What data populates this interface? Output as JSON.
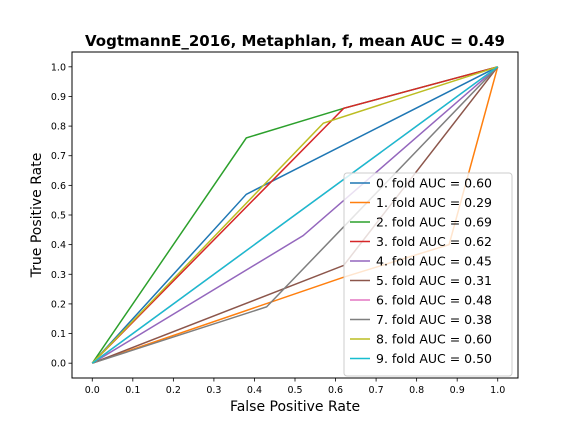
{
  "chart_data": {
    "type": "line",
    "title": "VogtmannE_2016, Metaphlan, f, mean AUC =  0.49",
    "xlabel": "False Positive Rate",
    "ylabel": "True Positive Rate",
    "xlim": [
      -0.05,
      1.05
    ],
    "ylim": [
      -0.05,
      1.05
    ],
    "xticks": [
      "0.0",
      "0.1",
      "0.2",
      "0.3",
      "0.4",
      "0.5",
      "0.6",
      "0.7",
      "0.8",
      "0.9",
      "1.0"
    ],
    "yticks": [
      "0.0",
      "0.1",
      "0.2",
      "0.3",
      "0.4",
      "0.5",
      "0.6",
      "0.7",
      "0.8",
      "0.9",
      "1.0"
    ],
    "grid": false,
    "legend_position": "lower-right",
    "series": [
      {
        "name": "0. fold AUC = 0.60",
        "color": "#1f77b4",
        "points": [
          [
            0,
            0
          ],
          [
            0.38,
            0.57
          ],
          [
            1,
            1
          ]
        ]
      },
      {
        "name": "1. fold AUC = 0.29",
        "color": "#ff7f0e",
        "points": [
          [
            0,
            0
          ],
          [
            0.62,
            0.29
          ],
          [
            0.88,
            0.4
          ],
          [
            1,
            1
          ]
        ]
      },
      {
        "name": "2. fold AUC = 0.69",
        "color": "#2ca02c",
        "points": [
          [
            0,
            0
          ],
          [
            0.38,
            0.76
          ],
          [
            0.62,
            0.86
          ],
          [
            1,
            1
          ]
        ]
      },
      {
        "name": "3. fold AUC = 0.62",
        "color": "#d62728",
        "points": [
          [
            0,
            0
          ],
          [
            0.62,
            0.86
          ],
          [
            1,
            1
          ]
        ]
      },
      {
        "name": "4. fold AUC = 0.45",
        "color": "#9467bd",
        "points": [
          [
            0,
            0
          ],
          [
            0.52,
            0.43
          ],
          [
            1,
            1
          ]
        ]
      },
      {
        "name": "5. fold AUC = 0.31",
        "color": "#8c564b",
        "points": [
          [
            0,
            0
          ],
          [
            0.62,
            0.33
          ],
          [
            1,
            1
          ]
        ]
      },
      {
        "name": "6. fold AUC = 0.48",
        "color": "#e377c2",
        "points": [
          [
            0,
            0
          ],
          [
            1,
            1
          ]
        ]
      },
      {
        "name": "7. fold AUC = 0.38",
        "color": "#7f7f7f",
        "points": [
          [
            0,
            0
          ],
          [
            0.43,
            0.19
          ],
          [
            1,
            1
          ]
        ]
      },
      {
        "name": "8. fold AUC = 0.60",
        "color": "#bcbd22",
        "points": [
          [
            0,
            0
          ],
          [
            0.57,
            0.81
          ],
          [
            1,
            1
          ]
        ]
      },
      {
        "name": "9. fold AUC = 0.50",
        "color": "#17becf",
        "points": [
          [
            0,
            0
          ],
          [
            1,
            1
          ]
        ]
      }
    ]
  }
}
